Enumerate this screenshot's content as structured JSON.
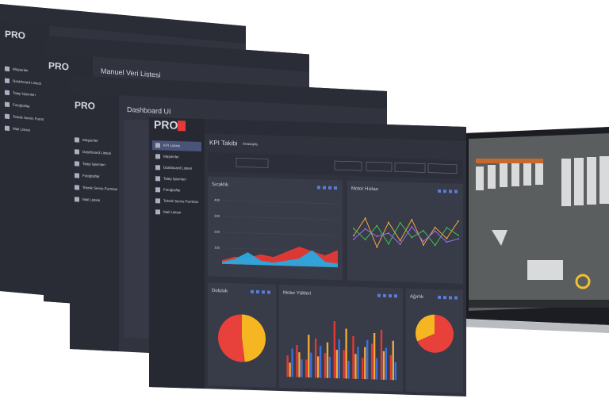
{
  "back_screens": [
    {
      "menu": [
        "Müşteriler",
        "Dashboard Listesi",
        "Talep İşlemleri",
        "Fotoğraflar",
        "Teknik Servis Formları",
        "Mail Listesi"
      ]
    },
    {
      "title": "Manuel Veri Listesi"
    },
    {
      "title": "Dashboard UI",
      "menu": [
        "Müşteriler",
        "Dashboard Listesi",
        "Talep İşlemleri",
        "Fotoğraflar",
        "Teknik Servis Formları",
        "Mail Listesi"
      ]
    }
  ],
  "front_screen": {
    "logo": "PRO",
    "menu": [
      "KPI Listesi",
      "Müşteriler",
      "Dashboard Listesi",
      "Talep İşlemleri",
      "Fotoğraflar",
      "Teknik Servis Formları",
      "Mail Listesi"
    ],
    "title": "KPI Takibi",
    "breadcrumb": "Anasayfa",
    "temperature": {
      "title": "Sıcaklık",
      "ylim": [
        0,
        450
      ],
      "yticks": [
        100,
        200,
        300,
        400
      ],
      "series": [
        {
          "color": "#e53935",
          "values": [
            20,
            45,
            40,
            65,
            50,
            85,
            120,
            95,
            70,
            105
          ]
        },
        {
          "color": "#29a8e0",
          "values": [
            10,
            30,
            75,
            25,
            15,
            30,
            45,
            100,
            30,
            20
          ]
        }
      ]
    },
    "motor_speeds": {
      "title": "Motor Hızları",
      "ylim": [
        0,
        100
      ],
      "series": [
        {
          "color": "#f2a93b",
          "values": [
            45,
            70,
            30,
            65,
            40,
            70,
            35,
            60,
            45,
            70
          ]
        },
        {
          "color": "#3fc34a",
          "values": [
            55,
            40,
            60,
            35,
            65,
            45,
            55,
            35,
            60,
            50
          ]
        },
        {
          "color": "#9b6cf2",
          "values": [
            40,
            55,
            45,
            50,
            35,
            60,
            40,
            55,
            40,
            45
          ]
        }
      ]
    },
    "motor_loads": {
      "title": "Motor Yükleri",
      "ylim": [
        0,
        100
      ],
      "series": [
        {
          "color": "#e53935",
          "values": [
            30,
            45,
            25,
            55,
            35,
            80,
            40,
            60,
            30,
            50,
            70,
            35
          ]
        },
        {
          "color": "#f2a93b",
          "values": [
            20,
            35,
            60,
            30,
            50,
            40,
            70,
            35,
            45,
            65,
            40,
            55
          ]
        },
        {
          "color": "#3a6fe0",
          "values": [
            40,
            25,
            35,
            45,
            30,
            55,
            25,
            45,
            55,
            30,
            45,
            25
          ]
        }
      ]
    },
    "fill_level": {
      "title": "Doluluk",
      "values": [
        48,
        52
      ],
      "colors": [
        "#f5b622",
        "#e8403a"
      ]
    },
    "weight": {
      "title": "Ağırlık",
      "values": [
        68,
        32
      ],
      "colors": [
        "#e8403a",
        "#f5b622"
      ]
    }
  }
}
